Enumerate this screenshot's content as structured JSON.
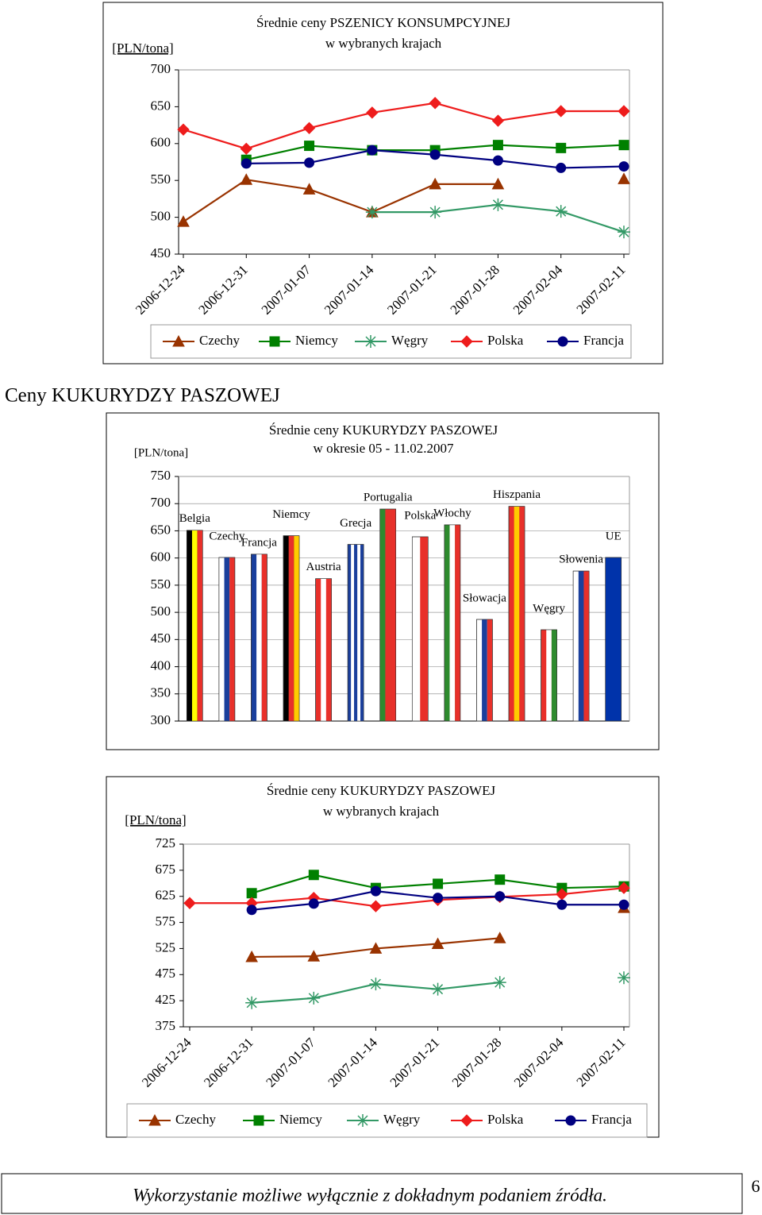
{
  "heading": "Ceny KUKURYDZY PASZOWEJ",
  "footer": "Wykorzystanie możliwe wyłącznie z dokładnym podaniem źródła.",
  "page_number": 6,
  "chart_data": [
    {
      "type": "line",
      "title": "Średnie ceny PSZENICY KONSUMPCYJNEJ",
      "subtitle": "w wybranych krajach",
      "y_label": "[PLN/tona]",
      "categories": [
        "2006-12-24",
        "2006-12-31",
        "2007-01-07",
        "2007-01-14",
        "2007-01-21",
        "2007-01-28",
        "2007-02-04",
        "2007-02-11"
      ],
      "ylim": [
        450,
        700
      ],
      "yticks": [
        450,
        500,
        550,
        600,
        650,
        700
      ],
      "grid": false,
      "series": [
        {
          "name": "Czechy",
          "color": "#993300",
          "marker": "triangle",
          "values": [
            494,
            551,
            538,
            507,
            545,
            545,
            null,
            552
          ]
        },
        {
          "name": "Niemcy",
          "color": "#008000",
          "marker": "square",
          "values": [
            null,
            578,
            597,
            591,
            591,
            598,
            594,
            598
          ]
        },
        {
          "name": "Węgry",
          "color": "#339966",
          "marker": "star",
          "values": [
            null,
            null,
            null,
            507,
            507,
            517,
            508,
            480
          ]
        },
        {
          "name": "Polska",
          "color": "#ee1c1c",
          "marker": "diamond",
          "values": [
            619,
            593,
            621,
            642,
            655,
            631,
            644,
            644
          ]
        },
        {
          "name": "Francja",
          "color": "#000080",
          "marker": "circle",
          "values": [
            null,
            573,
            574,
            591,
            585,
            577,
            567,
            569
          ]
        }
      ]
    },
    {
      "type": "bar",
      "title": "Średnie ceny KUKURYDZY PASZOWEJ",
      "subtitle": "w okresie 05 - 11.02.2007",
      "y_label": "[PLN/tona]",
      "categories": [
        "Belgia",
        "Czechy",
        "Francja",
        "Niemcy",
        "Austria",
        "Grecja",
        "Portugalia",
        "Polska",
        "Włochy",
        "Słowacja",
        "Hiszpania",
        "Węgry",
        "Słowenia",
        "UE"
      ],
      "values": [
        651,
        601,
        607,
        641,
        562,
        625,
        690,
        639,
        661,
        487,
        695,
        468,
        576,
        601
      ],
      "colors": [
        [
          "#000000",
          "#ffff00",
          "#e8302a"
        ],
        [
          "#ffffff",
          "#1a3f9c",
          "#e8302a"
        ],
        [
          "#1a3f9c",
          "#ffffff",
          "#e8302a"
        ],
        [
          "#000000",
          "#e8302a",
          "#ffcc00"
        ],
        [
          "#e8302a",
          "#ffffff",
          "#e8302a"
        ],
        [
          "#1a3f9c",
          "#ffffff",
          "#1a3f9c",
          "#ffffff",
          "#1a3f9c"
        ],
        [
          "#2e8b2e",
          "#e8302a",
          "#e8302a"
        ],
        [
          "#ffffff",
          "#e8302a"
        ],
        [
          "#2e8b2e",
          "#ffffff",
          "#e8302a"
        ],
        [
          "#ffffff",
          "#1a3f9c",
          "#e8302a"
        ],
        [
          "#e8302a",
          "#ffcc00",
          "#e8302a"
        ],
        [
          "#e8302a",
          "#ffffff",
          "#2e8b2e"
        ],
        [
          "#ffffff",
          "#1a3f9c",
          "#e8302a"
        ],
        [
          "#0033aa"
        ]
      ],
      "ylim": [
        300,
        750
      ],
      "yticks": [
        300,
        350,
        400,
        450,
        500,
        550,
        600,
        650,
        700,
        750
      ],
      "grid": true
    },
    {
      "type": "line",
      "title": "Średnie ceny KUKURYDZY PASZOWEJ",
      "subtitle": "w wybranych krajach",
      "y_label": "[PLN/tona]",
      "categories": [
        "2006-12-24",
        "2006-12-31",
        "2007-01-07",
        "2007-01-14",
        "2007-01-21",
        "2007-01-28",
        "2007-02-04",
        "2007-02-11"
      ],
      "ylim": [
        375,
        725
      ],
      "yticks": [
        375,
        425,
        475,
        525,
        575,
        625,
        675,
        725
      ],
      "grid": false,
      "series": [
        {
          "name": "Czechy",
          "color": "#993300",
          "marker": "triangle",
          "values": [
            null,
            509,
            510,
            525,
            534,
            545,
            null,
            603
          ]
        },
        {
          "name": "Niemcy",
          "color": "#008000",
          "marker": "square",
          "values": [
            null,
            631,
            666,
            641,
            649,
            657,
            641,
            644
          ]
        },
        {
          "name": "Węgry",
          "color": "#339966",
          "marker": "star",
          "values": [
            null,
            421,
            430,
            457,
            447,
            460,
            null,
            469
          ]
        },
        {
          "name": "Polska",
          "color": "#ee1c1c",
          "marker": "diamond",
          "values": [
            612,
            612,
            622,
            606,
            618,
            624,
            629,
            641
          ]
        },
        {
          "name": "Francja",
          "color": "#000080",
          "marker": "circle",
          "values": [
            null,
            599,
            611,
            635,
            622,
            625,
            609,
            609
          ]
        }
      ]
    }
  ]
}
